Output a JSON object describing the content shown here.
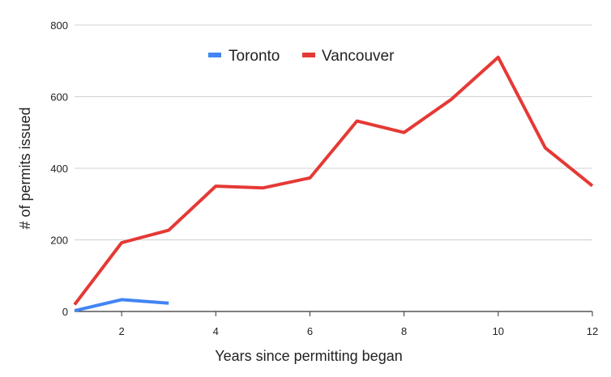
{
  "chart_data": {
    "type": "line",
    "title": "",
    "xlabel": "Years since permitting began",
    "ylabel": "# of permits issued",
    "xlim": [
      1,
      12
    ],
    "ylim": [
      0,
      800
    ],
    "xticks": [
      2,
      4,
      6,
      8,
      10,
      12
    ],
    "yticks": [
      0,
      200,
      400,
      600,
      800
    ],
    "grid": "horizontal",
    "legend_position": "top-center",
    "series": [
      {
        "name": "Toronto",
        "color": "#4285f4",
        "x": [
          1,
          2,
          3
        ],
        "y": [
          2,
          33,
          23
        ]
      },
      {
        "name": "Vancouver",
        "color": "#e53935",
        "x": [
          1,
          2,
          3,
          4,
          5,
          6,
          7,
          8,
          9,
          10,
          11,
          12
        ],
        "y": [
          19,
          192,
          227,
          350,
          345,
          373,
          532,
          500,
          592,
          710,
          457,
          351
        ]
      }
    ]
  }
}
